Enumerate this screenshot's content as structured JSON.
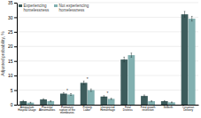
{
  "chart_data": {
    "type": "bar",
    "categories": [
      "Antepartum\nHospital Usage",
      "Placental\nAbnormalities",
      "Premature\nrupture of the\nmembranes",
      "Preterm\nLabor*",
      "Unexpected\nHemorrhage",
      "Fetal\nDistress",
      "Fetal growth\nrestriction",
      "Stillbirth",
      "Cesarean\nDelivery"
    ],
    "series": [
      {
        "name": "Experiencing\nhomelessness",
        "color": "#3d5c5c",
        "values": [
          1.2,
          1.8,
          3.8,
          7.5,
          2.8,
          15.5,
          3.0,
          1.2,
          31.0
        ],
        "errors": [
          0.25,
          0.25,
          0.35,
          0.6,
          0.3,
          0.8,
          0.35,
          0.2,
          1.0
        ]
      },
      {
        "name": "Not experiencing\nhomelessness",
        "color": "#82b0b0",
        "values": [
          0.7,
          1.2,
          3.5,
          5.0,
          2.0,
          17.0,
          1.2,
          0.8,
          29.5
        ],
        "errors": [
          0.15,
          0.2,
          0.3,
          0.4,
          0.2,
          0.7,
          0.2,
          0.15,
          0.8
        ]
      }
    ],
    "annotations": [
      {
        "text": "*",
        "index": 3
      },
      {
        "text": "*",
        "index": 4
      },
      {
        "text": "*",
        "index": 2
      }
    ],
    "ylabel": "Adjusted probability, %",
    "ylim": [
      0,
      35
    ],
    "yticks": [
      0,
      5,
      10,
      15,
      20,
      25,
      30,
      35
    ],
    "grid": true,
    "legend": "upper left"
  }
}
